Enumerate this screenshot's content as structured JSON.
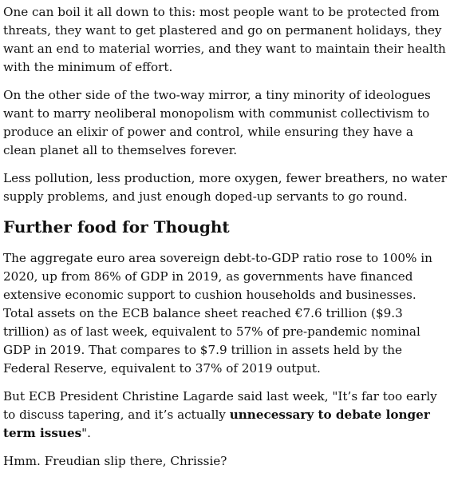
{
  "article": {
    "paragraph1": "One can boil it all down to this: most people want to be protected from threats, they want to get plastered and go on permanent holidays, they want an end to material worries, and they want to maintain their health with the minimum of effort.",
    "paragraph2": "On the other side of the two-way mirror, a tiny minority of ideologues want to marry neoliberal monopolism with communist collectivism to produce an elixir of power and control, while ensuring they have a clean planet all to themselves forever.",
    "paragraph3": "Less pollution, less production, more oxygen, fewer breathers, no water supply problems, and just enough doped-up servants to go round.",
    "heading": "Further food for Thought",
    "paragraph4": "The aggregate euro area sovereign debt-to-GDP ratio rose to 100% in 2020, up from 86% of GDP in 2019, as governments have financed extensive economic support to cushion households and businesses. Total assets on the ECB balance sheet reached €7.6 trillion ($9.3 trillion) as of last week, equivalent to 57% of pre-pandemic nominal GDP in 2019.  That compares to $7.9 trillion in assets held by the Federal Reserve, equivalent to 37% of 2019 output.",
    "paragraph5_start": "But ECB President Christine Lagarde said last week, \"It’s far too early to discuss tapering, and it’s actually ",
    "paragraph5_bold": "unnecessary to debate longer term issues",
    "paragraph5_end": "\".",
    "paragraph6": "Hmm. Freudian slip there, Chrissie?"
  }
}
